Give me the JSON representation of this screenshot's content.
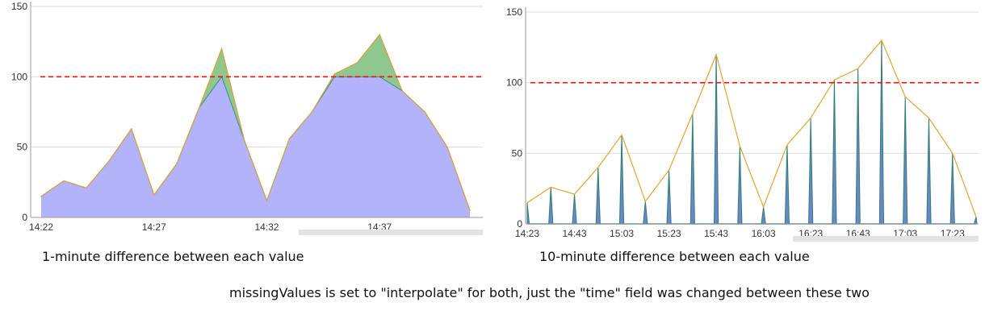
{
  "chart_data": [
    {
      "type": "area",
      "title": "",
      "xlabel": "",
      "ylabel": "",
      "ylim": [
        0,
        150
      ],
      "yticks": [
        0,
        50,
        100,
        150
      ],
      "x_tick_labels": [
        "14:22",
        "14:27",
        "14:32",
        "14:37"
      ],
      "x_tick_index": [
        0,
        5,
        10,
        15
      ],
      "x": [
        "14:22",
        "14:23",
        "14:24",
        "14:25",
        "14:26",
        "14:27",
        "14:28",
        "14:29",
        "14:30",
        "14:31",
        "14:32",
        "14:33",
        "14:34",
        "14:35",
        "14:36",
        "14:37",
        "14:38",
        "14:39",
        "14:40",
        "14:41"
      ],
      "threshold": 100,
      "series": [
        {
          "values": [
            15,
            26,
            21,
            40,
            63,
            16,
            38,
            78,
            120,
            55,
            12,
            56,
            75,
            102,
            110,
            130,
            90,
            75,
            50,
            5
          ]
        }
      ],
      "colors": {
        "fill": "#b3b3fb",
        "over_fill": "#8fc78f",
        "line": "#d9a23a",
        "under_line": "#3c8f85",
        "threshold": "#ee1111",
        "grid": "#dddddd",
        "axis": "#9a9a9a"
      },
      "grid": true
    },
    {
      "type": "line",
      "title": "",
      "xlabel": "",
      "ylabel": "",
      "ylim": [
        0,
        150
      ],
      "yticks": [
        0,
        50,
        100,
        150
      ],
      "x_tick_labels": [
        "14:23",
        "14:43",
        "15:03",
        "15:23",
        "15:43",
        "16:03",
        "16:23",
        "16:43",
        "17:03",
        "17:23"
      ],
      "x_tick_index": [
        0,
        2,
        4,
        6,
        8,
        10,
        12,
        14,
        16,
        18
      ],
      "x": [
        "14:23",
        "14:33",
        "14:43",
        "14:53",
        "15:03",
        "15:13",
        "15:23",
        "15:33",
        "15:43",
        "15:53",
        "16:03",
        "16:13",
        "16:23",
        "16:33",
        "16:43",
        "16:53",
        "17:03",
        "17:13",
        "17:23",
        "17:33"
      ],
      "threshold": 100,
      "series": [
        {
          "values": [
            15,
            26,
            21,
            40,
            63,
            16,
            38,
            78,
            120,
            55,
            12,
            56,
            75,
            102,
            110,
            130,
            90,
            75,
            50,
            5
          ]
        }
      ],
      "colors": {
        "spike_fill": "#6b86c9",
        "spike_line": "#2f7f73",
        "line": "#e8a22a",
        "threshold": "#ee1111",
        "grid": "#dddddd",
        "axis": "#9a9a9a"
      },
      "grid": true
    }
  ],
  "captions": {
    "left": "1-minute difference between each value",
    "right": "10-minute difference between each value",
    "note": "missingValues is set to \"interpolate\"  for both, just the \"time\" field was changed between these two"
  }
}
